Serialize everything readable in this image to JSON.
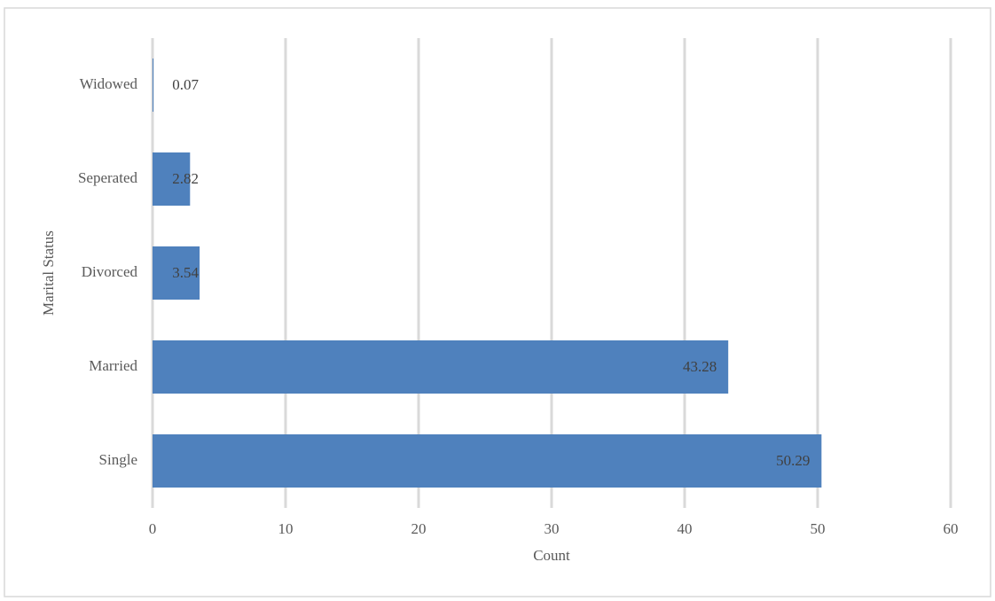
{
  "chart_data": {
    "type": "bar",
    "orientation": "horizontal",
    "x_label": "Count",
    "y_label": "Marital Status",
    "categories": [
      "Widowed",
      "Seperated",
      "Divorced",
      "Married",
      "Single"
    ],
    "values": [
      0.07,
      2.82,
      3.54,
      43.28,
      50.29
    ],
    "color": "#4f81bd",
    "xlim": [
      0,
      60
    ],
    "xticks": [
      0,
      10,
      20,
      30,
      40,
      50,
      60
    ],
    "grid": true
  }
}
